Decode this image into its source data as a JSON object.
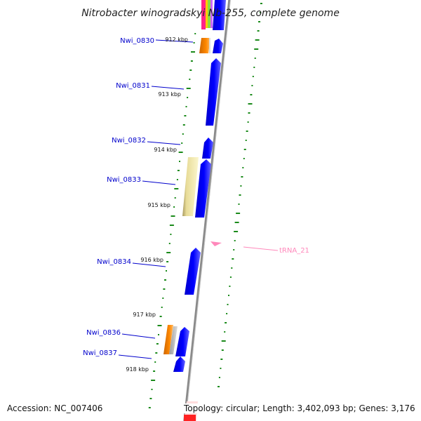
{
  "title": "Nitrobacter winogradskyi Nb-255, complete genome",
  "footer": {
    "accession": "Accession: NC_007406",
    "summary": "Topology: circular; Length: 3,402,093 bp; Genes: 3,176"
  },
  "colors": {
    "cds_forward": "#0000ff",
    "cds_orange": "#ff8800",
    "cds_pale": "#eee8a8",
    "backbone": "#888888",
    "gc_ticks": "#1a8a1a",
    "trna": "#ff88bb",
    "gene_label": "#0000cc"
  },
  "gene_labels": [
    {
      "text": "Nwi_0830"
    },
    {
      "text": "Nwi_0831"
    },
    {
      "text": "Nwi_0832"
    },
    {
      "text": "Nwi_0833"
    },
    {
      "text": "Nwi_0834"
    },
    {
      "text": "Nwi_0836"
    },
    {
      "text": "Nwi_0837"
    }
  ],
  "kbp_labels": [
    "912 kbp",
    "913 kbp",
    "914 kbp",
    "915 kbp",
    "916 kbp",
    "917 kbp",
    "918 kbp"
  ],
  "trna_label": "tRNA_21"
}
